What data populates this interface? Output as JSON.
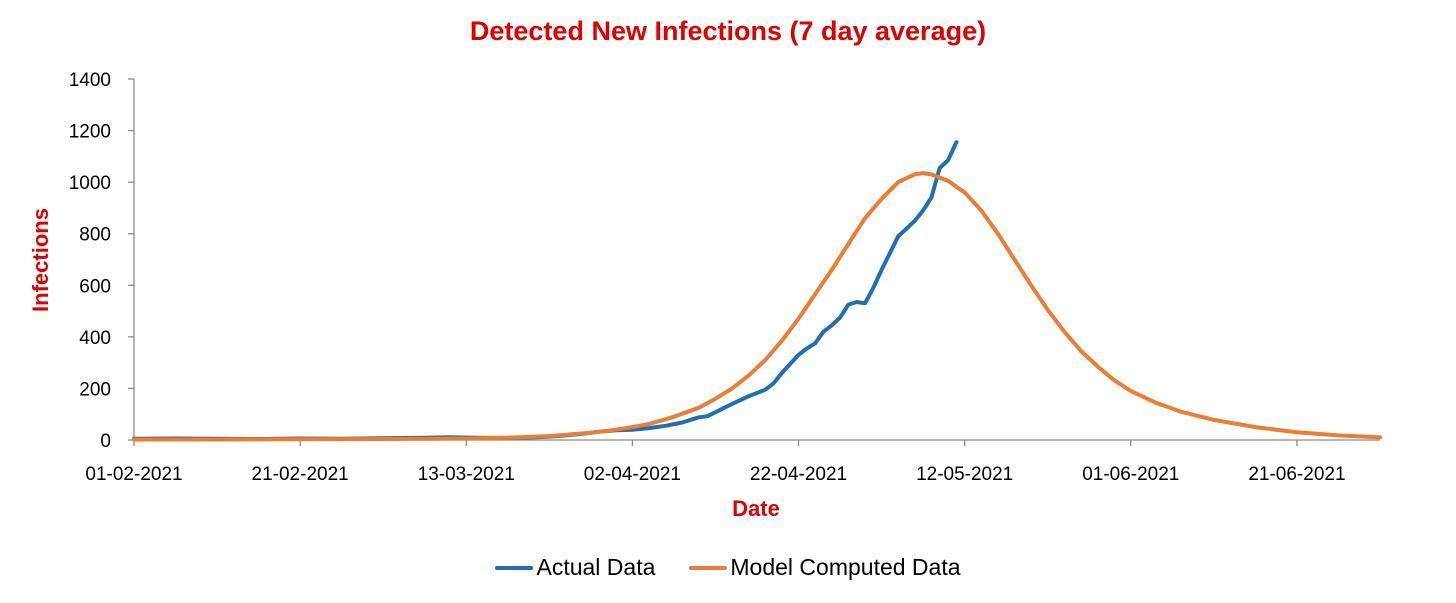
{
  "chart_data": {
    "type": "line",
    "title": "Detected New Infections (7 day average)",
    "xlabel": "Date",
    "ylabel": "Infections",
    "x_start": "01-02-2021",
    "x_range_days": [
      0,
      150
    ],
    "ylim": [
      0,
      1400
    ],
    "y_ticks": [
      0,
      200,
      400,
      600,
      800,
      1000,
      1200,
      1400
    ],
    "x_ticks": [
      {
        "label": "01-02-2021",
        "day": 0
      },
      {
        "label": "21-02-2021",
        "day": 20
      },
      {
        "label": "13-03-2021",
        "day": 40
      },
      {
        "label": "02-04-2021",
        "day": 60
      },
      {
        "label": "22-04-2021",
        "day": 80
      },
      {
        "label": "12-05-2021",
        "day": 100
      },
      {
        "label": "01-06-2021",
        "day": 120
      },
      {
        "label": "21-06-2021",
        "day": 140
      }
    ],
    "series": [
      {
        "name": "Actual Data",
        "color": "#1f6fb5",
        "points": [
          [
            0,
            5
          ],
          [
            5,
            6
          ],
          [
            10,
            5
          ],
          [
            15,
            4
          ],
          [
            20,
            6
          ],
          [
            25,
            5
          ],
          [
            30,
            7
          ],
          [
            35,
            9
          ],
          [
            38,
            11
          ],
          [
            42,
            8
          ],
          [
            45,
            8
          ],
          [
            48,
            10
          ],
          [
            50,
            13
          ],
          [
            52,
            18
          ],
          [
            54,
            24
          ],
          [
            56,
            32
          ],
          [
            58,
            38
          ],
          [
            60,
            40
          ],
          [
            62,
            46
          ],
          [
            64,
            55
          ],
          [
            66,
            68
          ],
          [
            68,
            88
          ],
          [
            69,
            92
          ],
          [
            70,
            108
          ],
          [
            72,
            140
          ],
          [
            74,
            170
          ],
          [
            76,
            195
          ],
          [
            77,
            220
          ],
          [
            78,
            260
          ],
          [
            79,
            295
          ],
          [
            80,
            330
          ],
          [
            81,
            355
          ],
          [
            82,
            375
          ],
          [
            83,
            420
          ],
          [
            84,
            445
          ],
          [
            85,
            475
          ],
          [
            86,
            525
          ],
          [
            87,
            535
          ],
          [
            88,
            530
          ],
          [
            89,
            590
          ],
          [
            90,
            660
          ],
          [
            91,
            725
          ],
          [
            92,
            790
          ],
          [
            93,
            820
          ],
          [
            94,
            850
          ],
          [
            95,
            890
          ],
          [
            96,
            940
          ],
          [
            97,
            1055
          ],
          [
            98,
            1085
          ],
          [
            99,
            1155
          ]
        ]
      },
      {
        "name": "Model Computed Data",
        "color": "#ed7d31",
        "points": [
          [
            0,
            2
          ],
          [
            10,
            2
          ],
          [
            20,
            3
          ],
          [
            30,
            4
          ],
          [
            40,
            6
          ],
          [
            45,
            9
          ],
          [
            50,
            15
          ],
          [
            55,
            28
          ],
          [
            58,
            40
          ],
          [
            60,
            50
          ],
          [
            62,
            62
          ],
          [
            65,
            90
          ],
          [
            68,
            125
          ],
          [
            70,
            160
          ],
          [
            72,
            200
          ],
          [
            74,
            250
          ],
          [
            76,
            310
          ],
          [
            78,
            385
          ],
          [
            80,
            470
          ],
          [
            82,
            565
          ],
          [
            84,
            660
          ],
          [
            86,
            760
          ],
          [
            88,
            860
          ],
          [
            90,
            935
          ],
          [
            92,
            1000
          ],
          [
            94,
            1030
          ],
          [
            95,
            1035
          ],
          [
            96,
            1030
          ],
          [
            98,
            1005
          ],
          [
            100,
            960
          ],
          [
            102,
            890
          ],
          [
            104,
            800
          ],
          [
            106,
            700
          ],
          [
            108,
            600
          ],
          [
            110,
            505
          ],
          [
            112,
            420
          ],
          [
            114,
            345
          ],
          [
            116,
            285
          ],
          [
            118,
            232
          ],
          [
            120,
            190
          ],
          [
            123,
            145
          ],
          [
            126,
            110
          ],
          [
            130,
            78
          ],
          [
            135,
            50
          ],
          [
            140,
            30
          ],
          [
            145,
            18
          ],
          [
            150,
            10
          ]
        ]
      }
    ],
    "legend_position": "bottom-center",
    "grid": false
  }
}
